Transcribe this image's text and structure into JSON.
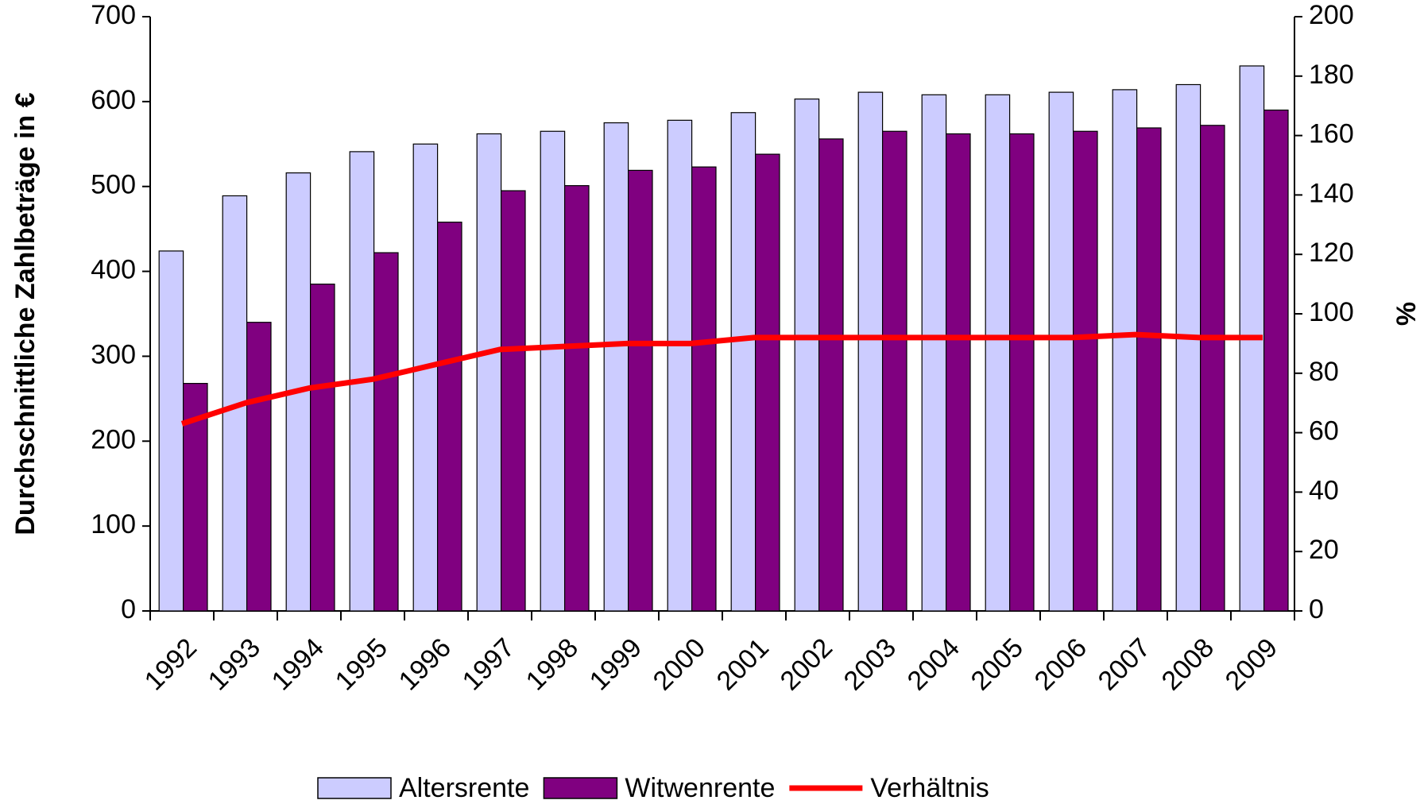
{
  "chart_data": {
    "type": "bar",
    "categories": [
      "1992",
      "1993",
      "1994",
      "1995",
      "1996",
      "1997",
      "1998",
      "1999",
      "2000",
      "2001",
      "2002",
      "2003",
      "2004",
      "2005",
      "2006",
      "2007",
      "2008",
      "2009"
    ],
    "series": [
      {
        "name": "Altersrente",
        "color": "#ccccff",
        "values": [
          424,
          489,
          516,
          541,
          550,
          562,
          565,
          575,
          578,
          587,
          603,
          611,
          608,
          608,
          611,
          614,
          620,
          642
        ]
      },
      {
        "name": "Witwenrente",
        "color": "#800080",
        "values": [
          268,
          340,
          385,
          422,
          458,
          495,
          501,
          519,
          523,
          538,
          556,
          565,
          562,
          562,
          565,
          569,
          572,
          590
        ]
      },
      {
        "name": "Verhältnis",
        "color": "#ff0000",
        "type": "line",
        "axis": "y2",
        "values": [
          63,
          70,
          75,
          78,
          83,
          88,
          89,
          90,
          90,
          92,
          92,
          92,
          92,
          92,
          92,
          93,
          92,
          92
        ]
      }
    ],
    "ylabel": "Durchschnittliche Zahlbeträge in €",
    "y2label": "%",
    "ylim": [
      0,
      700
    ],
    "yticks": [
      0,
      100,
      200,
      300,
      400,
      500,
      600,
      700
    ],
    "y2lim": [
      0,
      200
    ],
    "y2ticks": [
      0,
      20,
      40,
      60,
      80,
      100,
      120,
      140,
      160,
      180,
      200
    ],
    "legend": "bottom"
  }
}
